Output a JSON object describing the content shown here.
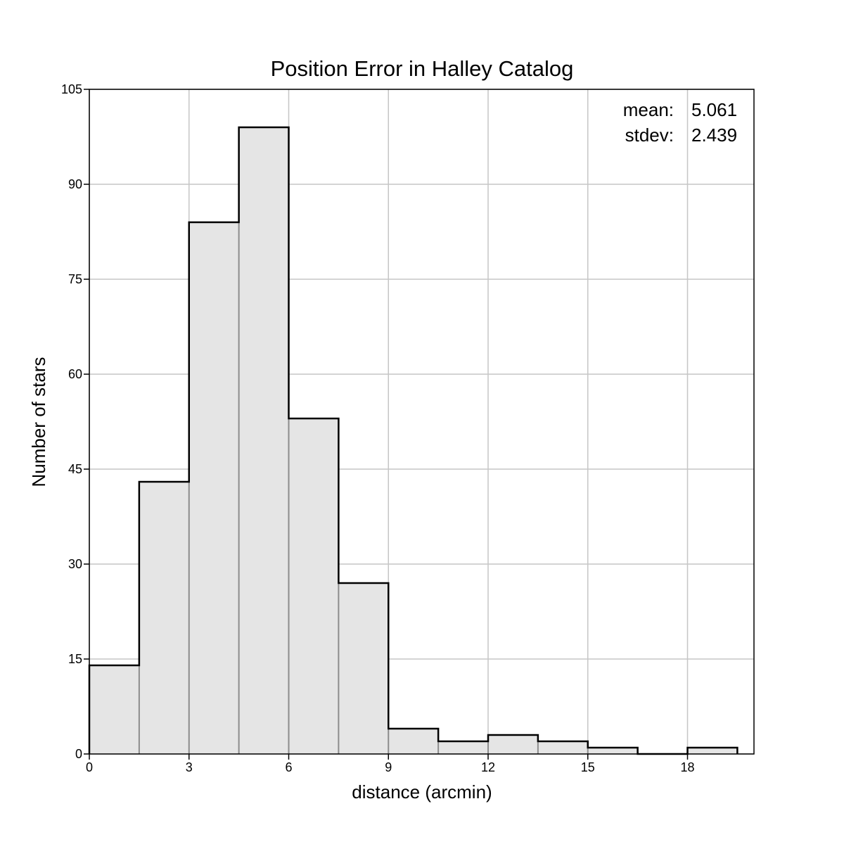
{
  "chart_data": {
    "type": "bar",
    "title": "Position Error in Halley Catalog",
    "xlabel": "distance (arcmin)",
    "ylabel": "Number of stars",
    "bin_width": 1.5,
    "bin_starts": [
      0,
      1.5,
      3,
      4.5,
      6,
      7.5,
      9,
      10.5,
      12,
      13.5,
      15,
      16.5,
      18
    ],
    "values": [
      14,
      43,
      84,
      99,
      53,
      27,
      4,
      2,
      3,
      2,
      1,
      0,
      1
    ],
    "xlim": [
      0,
      20
    ],
    "ylim": [
      0,
      105
    ],
    "x_ticks": [
      0,
      3,
      6,
      9,
      12,
      15,
      18
    ],
    "x_tick_labels": [
      "0",
      "3",
      "6",
      "9",
      "12",
      "15",
      "18"
    ],
    "y_ticks": [
      0,
      15,
      30,
      45,
      60,
      75,
      90,
      105
    ],
    "y_tick_labels": [
      "0",
      "15",
      "30",
      "45",
      "60",
      "75",
      "90",
      "105"
    ],
    "grid": true,
    "stats": [
      {
        "label": "mean:",
        "value": "5.061"
      },
      {
        "label": "stdev:",
        "value": "2.439"
      }
    ],
    "stats_placement": "top-right",
    "colors": {
      "bar_fill": "#e5e5e5",
      "outline": "#000000",
      "grid": "#c6c6c6"
    }
  }
}
